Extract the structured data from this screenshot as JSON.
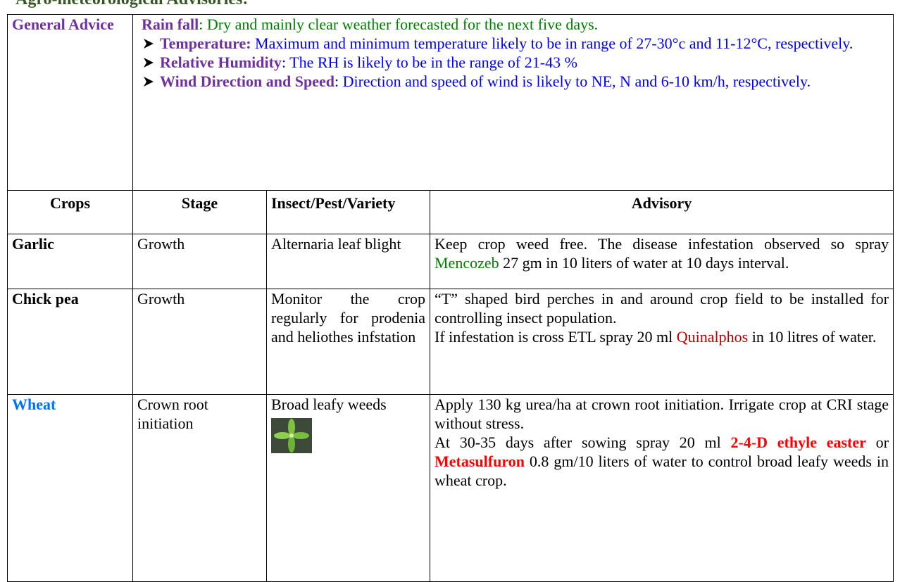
{
  "header": {
    "title": "Agro-meteorological Advisories:"
  },
  "general_advice": {
    "label": "General Advice",
    "rainfall": {
      "label": "Rain fall",
      "text": ": Dry and mainly clear weather forecasted for the next five days."
    },
    "bullets": [
      {
        "label": "Temperature:",
        "text": " Maximum and minimum temperature likely to be in range of 27-30°c and 11-12°C, respectively."
      },
      {
        "label": "Relative Humidity",
        "text": ": The RH is likely to be in the range of  21-43 %"
      },
      {
        "label": "Wind Direction and Speed",
        "text": ": Direction and speed of wind is likely to NE, N and 6-10 km/h, respectively."
      }
    ]
  },
  "table": {
    "headers": [
      "Crops",
      "Stage",
      "Insect/Pest/Variety",
      "Advisory"
    ],
    "rows": [
      {
        "crop": "Garlic",
        "stage": "Growth",
        "pest": "Alternaria leaf blight",
        "advisory": [
          "Keep crop weed free. The disease infestation observed so spray ",
          "Mencozeb",
          " 27 gm in 10 liters of water at 10 days interval."
        ]
      },
      {
        "crop": "Chick pea",
        "stage": "Growth",
        "pest": "Monitor the crop regularly for prodenia and heliothes infstation",
        "advisory": [
          "“T” shaped bird perches in and around crop field to be installed for controlling insect population.",
          "If infestation is cross ETL spray 20 ml ",
          "Quinalphos",
          " in 10 litres of water."
        ]
      },
      {
        "crop": "Wheat",
        "stage": "Crown root initiation",
        "pest": "Broad leafy weeds",
        "advisory": [
          "Apply 130 kg urea/ha at crown root initiation. Irrigate crop at CRI stage without stress.",
          "At 30-35 days after sowing spray 20 ml ",
          "2-4-D ethyle easter",
          " or ",
          "Metasulfuron",
          " 0.8 gm/10 liters of water to control broad leafy weeds in wheat crop."
        ]
      }
    ]
  }
}
